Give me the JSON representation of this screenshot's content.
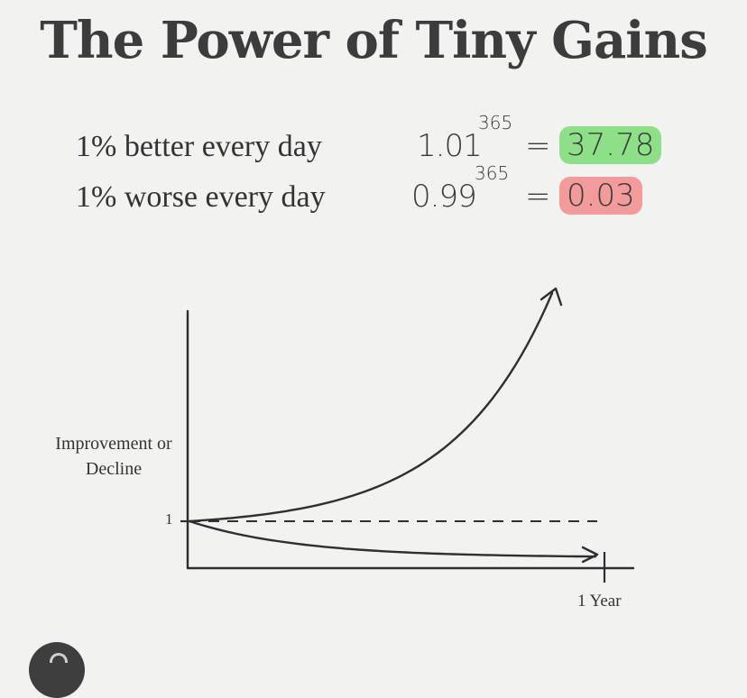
{
  "title": "The Power of Tiny Gains",
  "equations": [
    {
      "label": "1% better every day",
      "base": "1.01",
      "exponent": "365",
      "equals": "=",
      "result": "37.78",
      "highlight": "#8ee088"
    },
    {
      "label": "1% worse every day",
      "base": "0.99",
      "exponent": "365",
      "equals": "=",
      "result": "0.03",
      "highlight": "#f39a9a"
    }
  ],
  "chart_data": {
    "type": "line",
    "ylabel": "Improvement or Decline",
    "y_tick_labels": [
      "1"
    ],
    "x_tick_labels": [
      "1 Year"
    ],
    "series": [
      {
        "name": "1% better every day",
        "growth": 1.01,
        "x": [
          0,
          365
        ],
        "y": [
          1,
          37.78
        ]
      },
      {
        "name": "1% worse every day",
        "growth": 0.99,
        "x": [
          0,
          365
        ],
        "y": [
          1,
          0.03
        ]
      }
    ],
    "reference_line": {
      "y": 1,
      "style": "dashed"
    },
    "grid": false,
    "legend": "none"
  }
}
